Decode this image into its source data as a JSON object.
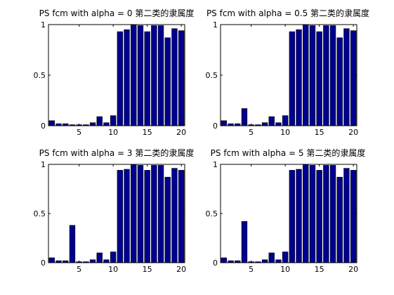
{
  "colors": {
    "bar_fill": "#00008f",
    "bar_edge": "#000000",
    "axes": "#000000",
    "background": "#ffffff"
  },
  "chart_data": [
    {
      "type": "bar",
      "title": "PS fcm with alpha = 0 第二类的隶属度",
      "categories": [
        1,
        2,
        3,
        4,
        5,
        6,
        7,
        8,
        9,
        10,
        11,
        12,
        13,
        14,
        15,
        16,
        17,
        18,
        19,
        20
      ],
      "values": [
        0.05,
        0.02,
        0.02,
        0.01,
        0.01,
        0.01,
        0.03,
        0.09,
        0.03,
        0.1,
        0.93,
        0.95,
        1.0,
        0.99,
        0.93,
        0.99,
        0.99,
        0.87,
        0.96,
        0.94
      ],
      "xlim": [
        0.5,
        20.5
      ],
      "ylim": [
        0,
        1
      ],
      "xticks": [
        5,
        10,
        15,
        20
      ],
      "yticks": [
        0,
        0.5,
        1
      ],
      "xtick_labels": [
        "5",
        "10",
        "15",
        "20"
      ],
      "ytick_labels": [
        "0",
        "0.5",
        "1"
      ],
      "grid": false
    },
    {
      "type": "bar",
      "title": "PS fcm with alpha = 0.5 第二类的隶属度",
      "categories": [
        1,
        2,
        3,
        4,
        5,
        6,
        7,
        8,
        9,
        10,
        11,
        12,
        13,
        14,
        15,
        16,
        17,
        18,
        19,
        20
      ],
      "values": [
        0.05,
        0.02,
        0.02,
        0.17,
        0.01,
        0.01,
        0.03,
        0.09,
        0.03,
        0.1,
        0.93,
        0.95,
        1.0,
        0.99,
        0.93,
        0.99,
        0.99,
        0.87,
        0.96,
        0.94
      ],
      "xlim": [
        0.5,
        20.5
      ],
      "ylim": [
        0,
        1
      ],
      "xticks": [
        5,
        10,
        15,
        20
      ],
      "yticks": [
        0,
        0.5,
        1
      ],
      "xtick_labels": [
        "5",
        "10",
        "15",
        "20"
      ],
      "ytick_labels": [
        "0",
        "0.5",
        "1"
      ],
      "grid": false
    },
    {
      "type": "bar",
      "title": "PS fcm with alpha = 3 第二类的隶属度",
      "categories": [
        1,
        2,
        3,
        4,
        5,
        6,
        7,
        8,
        9,
        10,
        11,
        12,
        13,
        14,
        15,
        16,
        17,
        18,
        19,
        20
      ],
      "values": [
        0.05,
        0.02,
        0.02,
        0.38,
        0.01,
        0.01,
        0.03,
        0.1,
        0.03,
        0.11,
        0.94,
        0.95,
        1.0,
        0.99,
        0.94,
        0.99,
        0.99,
        0.87,
        0.96,
        0.94
      ],
      "xlim": [
        0.5,
        20.5
      ],
      "ylim": [
        0,
        1
      ],
      "xticks": [
        5,
        10,
        15,
        20
      ],
      "yticks": [
        0,
        0.5,
        1
      ],
      "xtick_labels": [
        "5",
        "10",
        "15",
        "20"
      ],
      "ytick_labels": [
        "0",
        "0.5",
        "1"
      ],
      "grid": false
    },
    {
      "type": "bar",
      "title": "PS fcm with alpha = 5 第二类的隶属度",
      "categories": [
        1,
        2,
        3,
        4,
        5,
        6,
        7,
        8,
        9,
        10,
        11,
        12,
        13,
        14,
        15,
        16,
        17,
        18,
        19,
        20
      ],
      "values": [
        0.05,
        0.02,
        0.02,
        0.42,
        0.01,
        0.01,
        0.03,
        0.1,
        0.03,
        0.11,
        0.94,
        0.95,
        1.0,
        0.99,
        0.94,
        0.99,
        0.99,
        0.87,
        0.96,
        0.94
      ],
      "xlim": [
        0.5,
        20.5
      ],
      "ylim": [
        0,
        1
      ],
      "xticks": [
        5,
        10,
        15,
        20
      ],
      "yticks": [
        0,
        0.5,
        1
      ],
      "xtick_labels": [
        "5",
        "10",
        "15",
        "20"
      ],
      "ytick_labels": [
        "0",
        "0.5",
        "1"
      ],
      "grid": false
    }
  ]
}
